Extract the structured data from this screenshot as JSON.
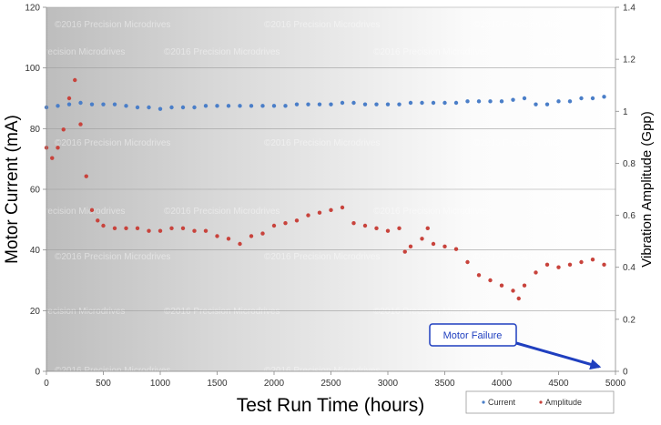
{
  "chart_data": {
    "type": "scatter",
    "title": "",
    "xlabel": "Test Run Time (hours)",
    "ylabel": "Motor Current (mA)",
    "y2label": "Vibration Amplitude (Gpp)",
    "xlim": [
      0,
      5000
    ],
    "ylim": [
      0,
      120
    ],
    "y2lim": [
      0,
      1.4
    ],
    "x_ticks": [
      "0",
      "500",
      "1000",
      "1500",
      "2000",
      "2500",
      "3000",
      "3500",
      "4000",
      "4500",
      "5000"
    ],
    "y_ticks": [
      "0",
      "20",
      "40",
      "60",
      "80",
      "100",
      "120"
    ],
    "y2_ticks": [
      "0",
      "0.2",
      "0.4",
      "0.6",
      "0.8",
      "1",
      "1.2",
      "1.4"
    ],
    "grid": true,
    "legend_position": "bottom-right",
    "watermark": "©2016 Precision Microdrives",
    "series": [
      {
        "name": "Current",
        "axis": "left",
        "color": "#4a7ec8",
        "x": [
          0,
          100,
          200,
          300,
          400,
          500,
          600,
          700,
          800,
          900,
          1000,
          1100,
          1200,
          1300,
          1400,
          1500,
          1600,
          1700,
          1800,
          1900,
          2000,
          2100,
          2200,
          2300,
          2400,
          2500,
          2600,
          2700,
          2800,
          2900,
          3000,
          3100,
          3200,
          3300,
          3400,
          3500,
          3600,
          3700,
          3800,
          3900,
          4000,
          4100,
          4200,
          4300,
          4400,
          4500,
          4600,
          4700,
          4800,
          4900
        ],
        "y": [
          87,
          87.5,
          88,
          88.5,
          88,
          88,
          88,
          87.5,
          87,
          87,
          86.5,
          87,
          87,
          87,
          87.5,
          87.5,
          87.5,
          87.5,
          87.5,
          87.5,
          87.5,
          87.5,
          88,
          88,
          88,
          88,
          88.5,
          88.5,
          88,
          88,
          88,
          88,
          88.5,
          88.5,
          88.5,
          88.5,
          88.5,
          89,
          89,
          89,
          89,
          89.5,
          90,
          88,
          88,
          89,
          89,
          90,
          90,
          90.5
        ]
      },
      {
        "name": "Amplitude",
        "axis": "right",
        "color": "#c8433c",
        "x": [
          0,
          50,
          100,
          150,
          200,
          250,
          300,
          350,
          400,
          450,
          500,
          600,
          700,
          800,
          900,
          1000,
          1100,
          1200,
          1300,
          1400,
          1500,
          1600,
          1700,
          1800,
          1900,
          2000,
          2100,
          2200,
          2300,
          2400,
          2500,
          2600,
          2700,
          2800,
          2900,
          3000,
          3100,
          3150,
          3200,
          3300,
          3350,
          3400,
          3500,
          3600,
          3700,
          3800,
          3900,
          4000,
          4100,
          4150,
          4200,
          4300,
          4400,
          4500,
          4600,
          4700,
          4800,
          4900
        ],
        "y": [
          0.86,
          0.82,
          0.86,
          0.93,
          1.05,
          1.12,
          0.95,
          0.75,
          0.62,
          0.58,
          0.56,
          0.55,
          0.55,
          0.55,
          0.54,
          0.54,
          0.55,
          0.55,
          0.54,
          0.54,
          0.52,
          0.51,
          0.49,
          0.52,
          0.53,
          0.56,
          0.57,
          0.58,
          0.6,
          0.61,
          0.62,
          0.63,
          0.57,
          0.56,
          0.55,
          0.54,
          0.55,
          0.46,
          0.48,
          0.51,
          0.55,
          0.49,
          0.48,
          0.47,
          0.42,
          0.37,
          0.35,
          0.33,
          0.31,
          0.28,
          0.33,
          0.38,
          0.41,
          0.4,
          0.41,
          0.42,
          0.43,
          0.41
        ]
      }
    ],
    "annotations": [
      {
        "text": "Motor Failure",
        "x": 4900,
        "y": 0
      }
    ]
  }
}
